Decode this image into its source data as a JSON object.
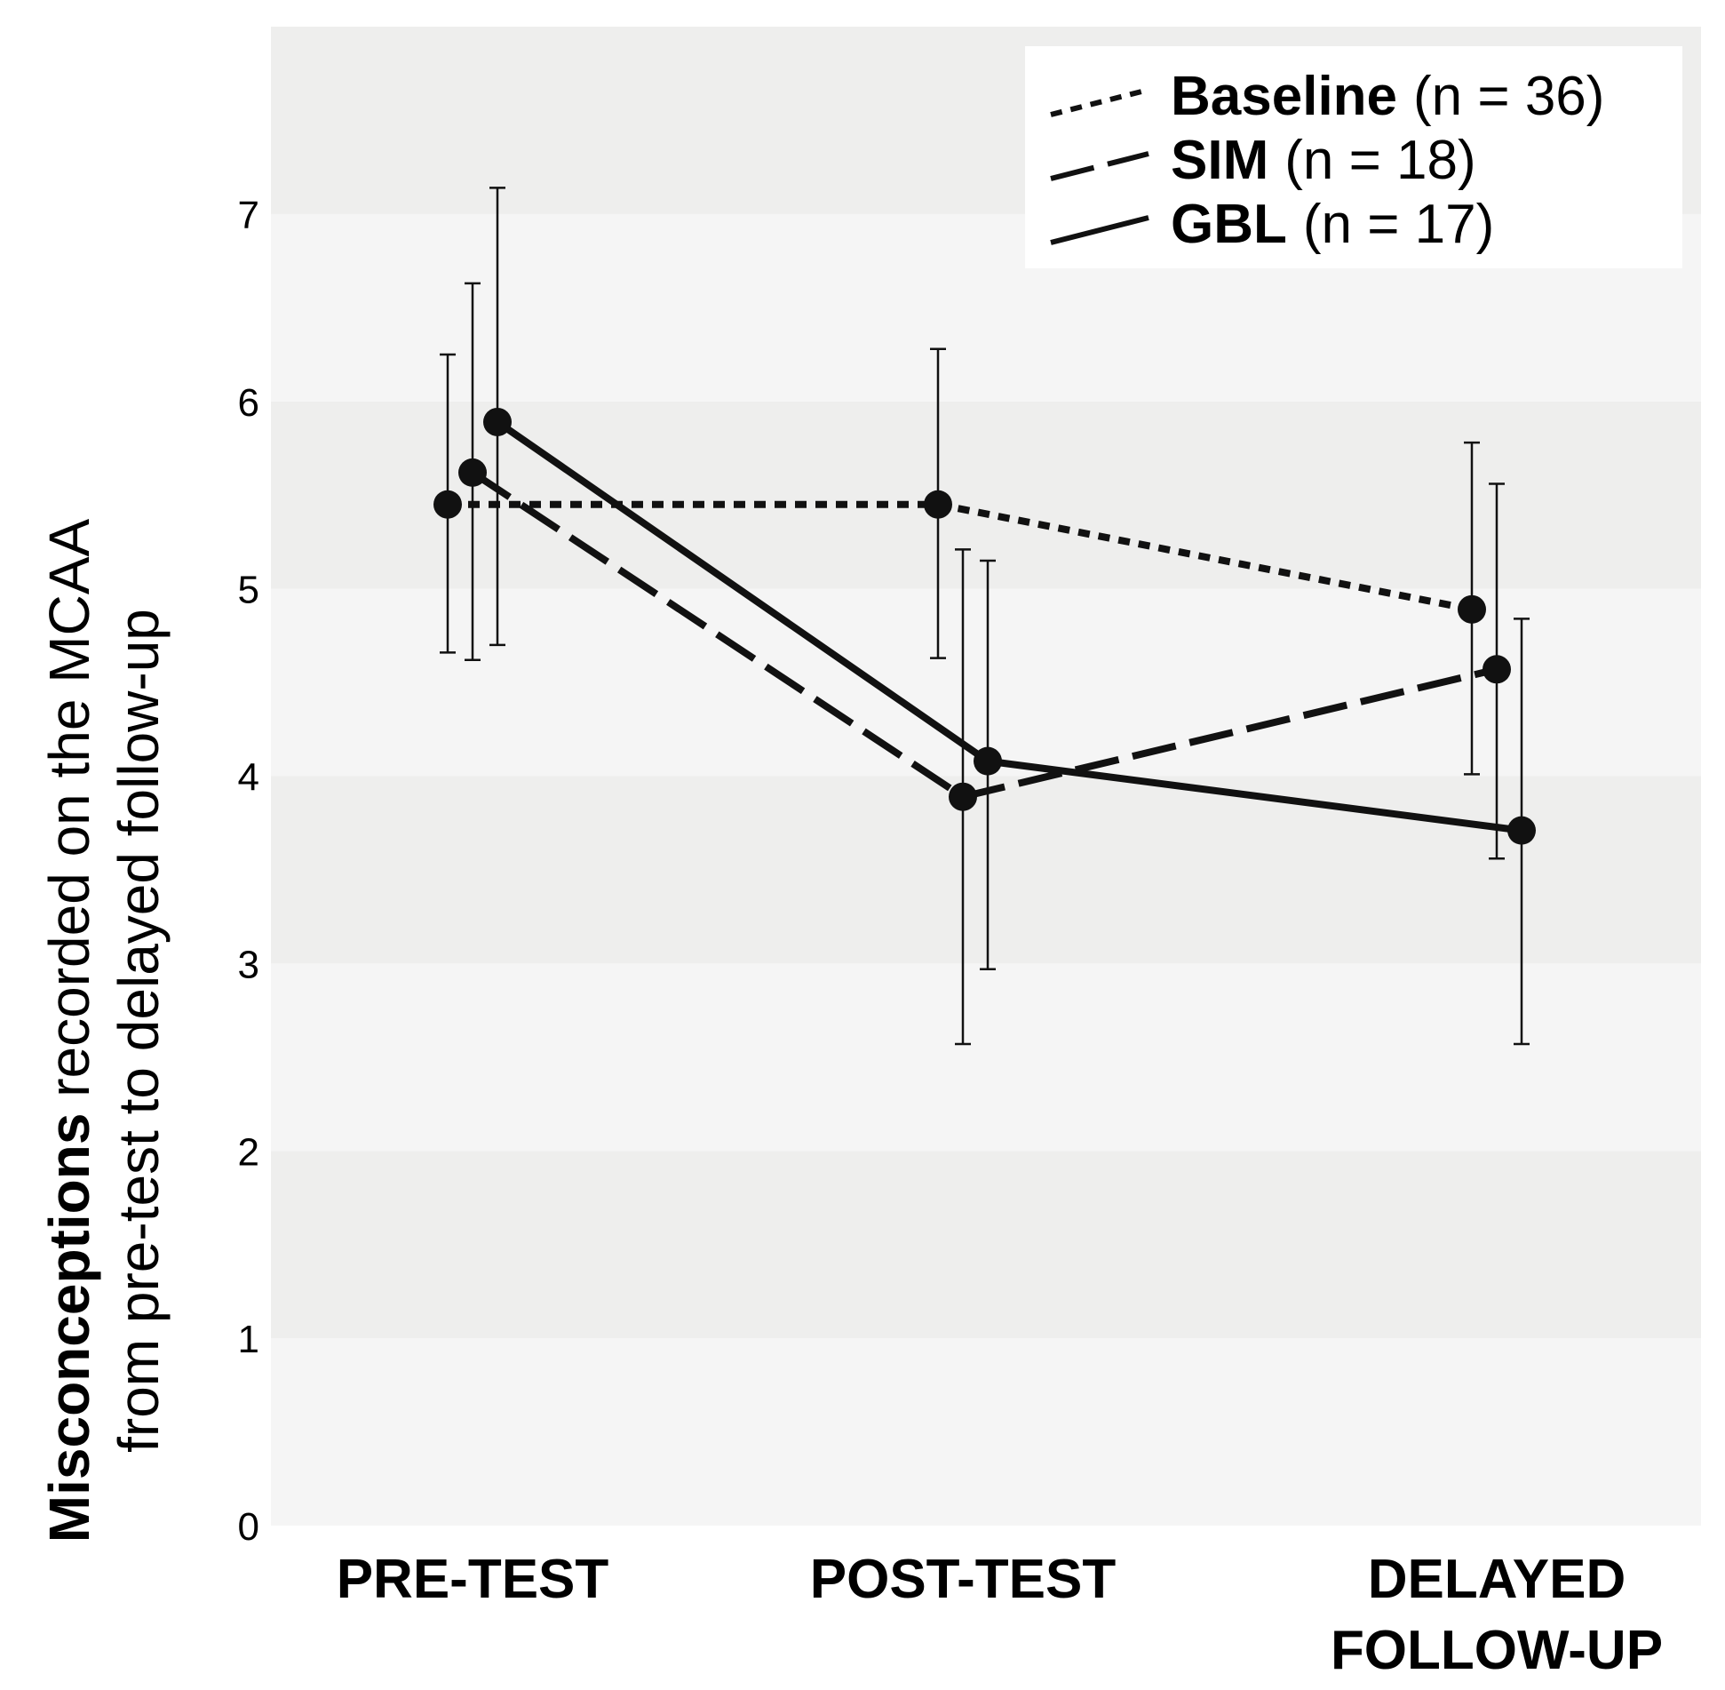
{
  "chart_data": {
    "type": "line",
    "title": "",
    "categories": [
      "PRE-TEST",
      "POST-TEST",
      "DELAYED FOLLOW-UP"
    ],
    "category_lines": [
      [
        "PRE-TEST"
      ],
      [
        "POST-TEST"
      ],
      [
        "DELAYED",
        "FOLLOW-UP"
      ]
    ],
    "ylabel_bold": "Misconceptions",
    "ylabel_rest": " recorded on the MCAA",
    "ylabel_line2": "from pre-test to delayed follow-up",
    "ylim": [
      0,
      8
    ],
    "yticks": [
      0,
      1,
      2,
      3,
      4,
      5,
      6,
      7
    ],
    "background_bands": true,
    "legend_position": "top-right",
    "error_bars": true,
    "series": [
      {
        "name": "Baseline",
        "n_label": "(n = 36)",
        "style": "dotted",
        "values": [
          5.45,
          5.45,
          4.89
        ],
        "err_low": [
          4.66,
          4.63,
          4.01
        ],
        "err_high": [
          6.25,
          6.28,
          5.78
        ]
      },
      {
        "name": "SIM",
        "n_label": "(n = 18)",
        "style": "dashed",
        "values": [
          5.62,
          3.89,
          4.57
        ],
        "err_low": [
          4.62,
          2.57,
          3.56
        ],
        "err_high": [
          6.63,
          5.21,
          5.56
        ]
      },
      {
        "name": "GBL",
        "n_label": "(n = 17)",
        "style": "solid",
        "values": [
          5.89,
          4.08,
          3.71
        ],
        "err_low": [
          4.7,
          2.97,
          2.57
        ],
        "err_high": [
          7.14,
          5.15,
          4.84
        ]
      }
    ]
  }
}
